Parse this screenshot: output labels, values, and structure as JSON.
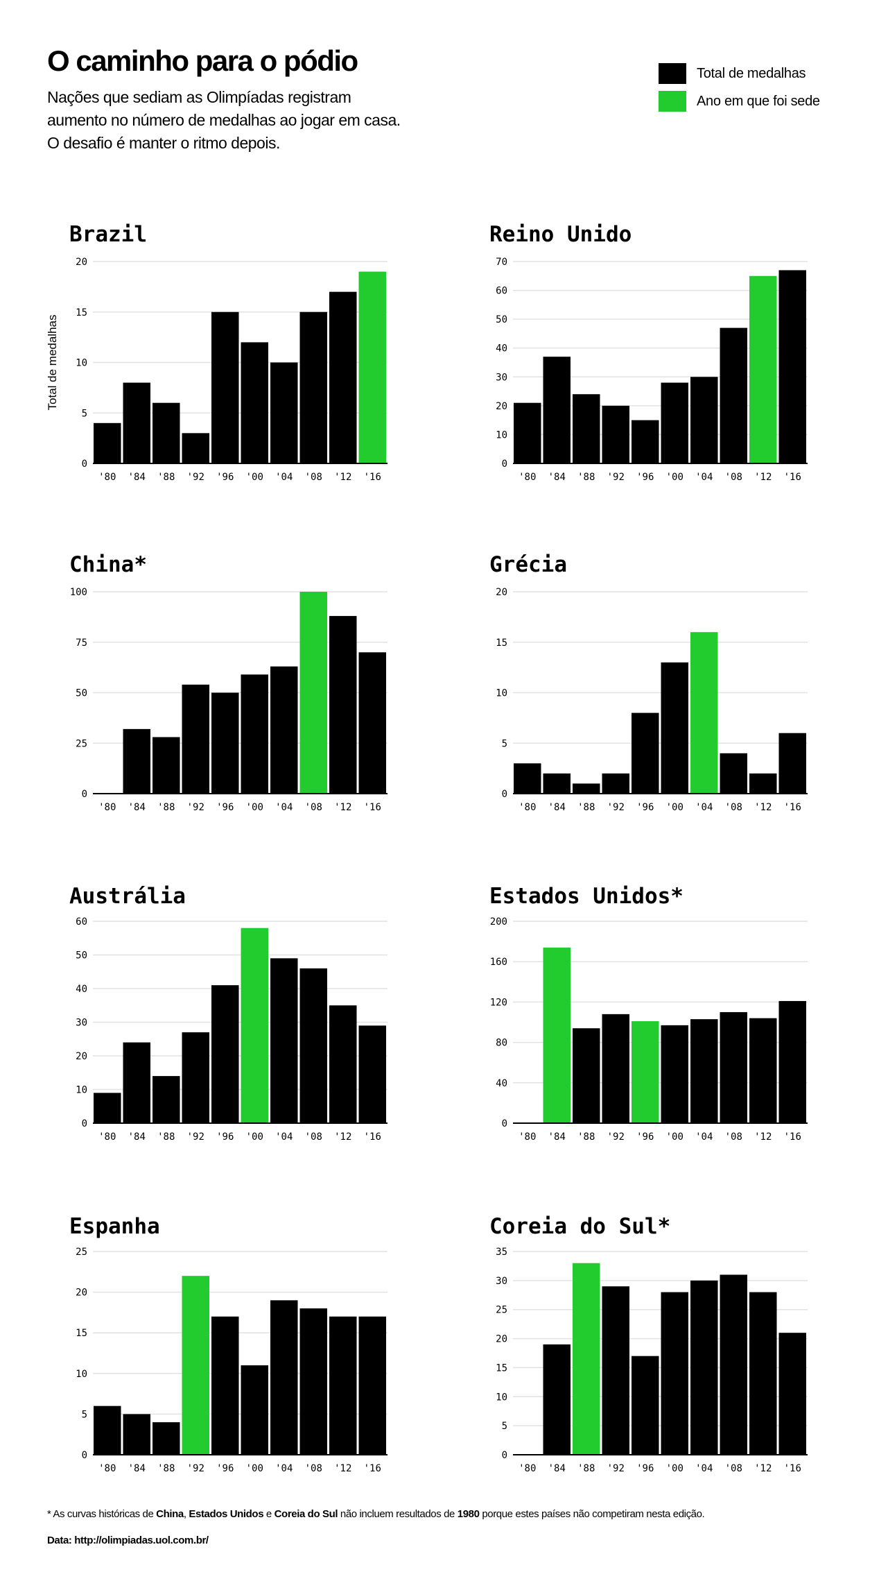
{
  "header": {
    "title": "O caminho para o pódio",
    "subtitle_lines": [
      "Nações que sediam as Olimpíadas registram",
      "aumento no número de medalhas ao jogar em casa.",
      "O desafio é manter o ritmo depois."
    ]
  },
  "legend": {
    "items": [
      {
        "label": "Total de medalhas",
        "color": "#000000"
      },
      {
        "label": "Ano em que foi sede",
        "color": "#22cc2e"
      }
    ]
  },
  "colors": {
    "bar": "#000000",
    "host": "#22cc2e",
    "grid": "#e2e2e2"
  },
  "chart_data": [
    {
      "type": "bar",
      "title": "Brazil",
      "ylabel": "Total de medalhas",
      "categories": [
        "'80",
        "'84",
        "'88",
        "'92",
        "'96",
        "'00",
        "'04",
        "'08",
        "'12",
        "'16"
      ],
      "values": [
        4,
        8,
        6,
        3,
        15,
        12,
        10,
        15,
        17,
        19
      ],
      "host": [
        "'16"
      ],
      "ylim": [
        0,
        20
      ],
      "yticks": [
        0,
        5,
        10,
        15,
        20
      ]
    },
    {
      "type": "bar",
      "title": "Reino Unido",
      "ylabel": "",
      "categories": [
        "'80",
        "'84",
        "'88",
        "'92",
        "'96",
        "'00",
        "'04",
        "'08",
        "'12",
        "'16"
      ],
      "values": [
        21,
        37,
        24,
        20,
        15,
        28,
        30,
        47,
        65,
        67
      ],
      "host": [
        "'12"
      ],
      "ylim": [
        0,
        70
      ],
      "yticks": [
        0,
        10,
        20,
        30,
        40,
        50,
        60,
        70
      ]
    },
    {
      "type": "bar",
      "title": "China*",
      "ylabel": "",
      "categories": [
        "'80",
        "'84",
        "'88",
        "'92",
        "'96",
        "'00",
        "'04",
        "'08",
        "'12",
        "'16"
      ],
      "values": [
        0,
        32,
        28,
        54,
        50,
        59,
        63,
        100,
        88,
        70
      ],
      "host": [
        "'08"
      ],
      "ylim": [
        0,
        100
      ],
      "yticks": [
        0,
        25,
        50,
        75,
        100
      ]
    },
    {
      "type": "bar",
      "title": "Grécia",
      "ylabel": "",
      "categories": [
        "'80",
        "'84",
        "'88",
        "'92",
        "'96",
        "'00",
        "'04",
        "'08",
        "'12",
        "'16"
      ],
      "values": [
        3,
        2,
        1,
        2,
        8,
        13,
        16,
        4,
        2,
        6
      ],
      "host": [
        "'04"
      ],
      "ylim": [
        0,
        20
      ],
      "yticks": [
        0,
        5,
        10,
        15,
        20
      ]
    },
    {
      "type": "bar",
      "title": "Austrália",
      "ylabel": "",
      "categories": [
        "'80",
        "'84",
        "'88",
        "'92",
        "'96",
        "'00",
        "'04",
        "'08",
        "'12",
        "'16"
      ],
      "values": [
        9,
        24,
        14,
        27,
        41,
        58,
        49,
        46,
        35,
        29
      ],
      "host": [
        "'00"
      ],
      "ylim": [
        0,
        60
      ],
      "yticks": [
        0,
        10,
        20,
        30,
        40,
        50,
        60
      ]
    },
    {
      "type": "bar",
      "title": "Estados Unidos*",
      "ylabel": "",
      "categories": [
        "'80",
        "'84",
        "'88",
        "'92",
        "'96",
        "'00",
        "'04",
        "'08",
        "'12",
        "'16"
      ],
      "values": [
        0,
        174,
        94,
        108,
        101,
        97,
        103,
        110,
        104,
        121
      ],
      "host": [
        "'84",
        "'96"
      ],
      "ylim": [
        0,
        200
      ],
      "yticks": [
        0,
        40,
        80,
        120,
        160,
        200
      ]
    },
    {
      "type": "bar",
      "title": "Espanha",
      "ylabel": "",
      "categories": [
        "'80",
        "'84",
        "'88",
        "'92",
        "'96",
        "'00",
        "'04",
        "'08",
        "'12",
        "'16"
      ],
      "values": [
        6,
        5,
        4,
        22,
        17,
        11,
        19,
        18,
        17,
        17
      ],
      "host": [
        "'92"
      ],
      "ylim": [
        0,
        25
      ],
      "yticks": [
        0,
        5,
        10,
        15,
        20,
        25
      ]
    },
    {
      "type": "bar",
      "title": "Coreia do Sul*",
      "ylabel": "",
      "categories": [
        "'80",
        "'84",
        "'88",
        "'92",
        "'96",
        "'00",
        "'04",
        "'08",
        "'12",
        "'16"
      ],
      "values": [
        0,
        19,
        33,
        29,
        17,
        28,
        30,
        31,
        28,
        21
      ],
      "host": [
        "'88"
      ],
      "ylim": [
        0,
        35
      ],
      "yticks": [
        0,
        5,
        10,
        15,
        20,
        25,
        30,
        35
      ]
    }
  ],
  "footnote": {
    "parts": [
      {
        "text": "* As curvas históricas de ",
        "bold": false
      },
      {
        "text": "China",
        "bold": true
      },
      {
        "text": ", ",
        "bold": false
      },
      {
        "text": "Estados Unidos",
        "bold": true
      },
      {
        "text": " e ",
        "bold": false
      },
      {
        "text": "Coreia do Sul",
        "bold": true
      },
      {
        "text": " não incluem resultados de ",
        "bold": false
      },
      {
        "text": "1980",
        "bold": true
      },
      {
        "text": " porque estes países não competiram nesta edição.",
        "bold": false
      }
    ]
  },
  "source": "Data: http://olimpiadas.uol.com.br/"
}
